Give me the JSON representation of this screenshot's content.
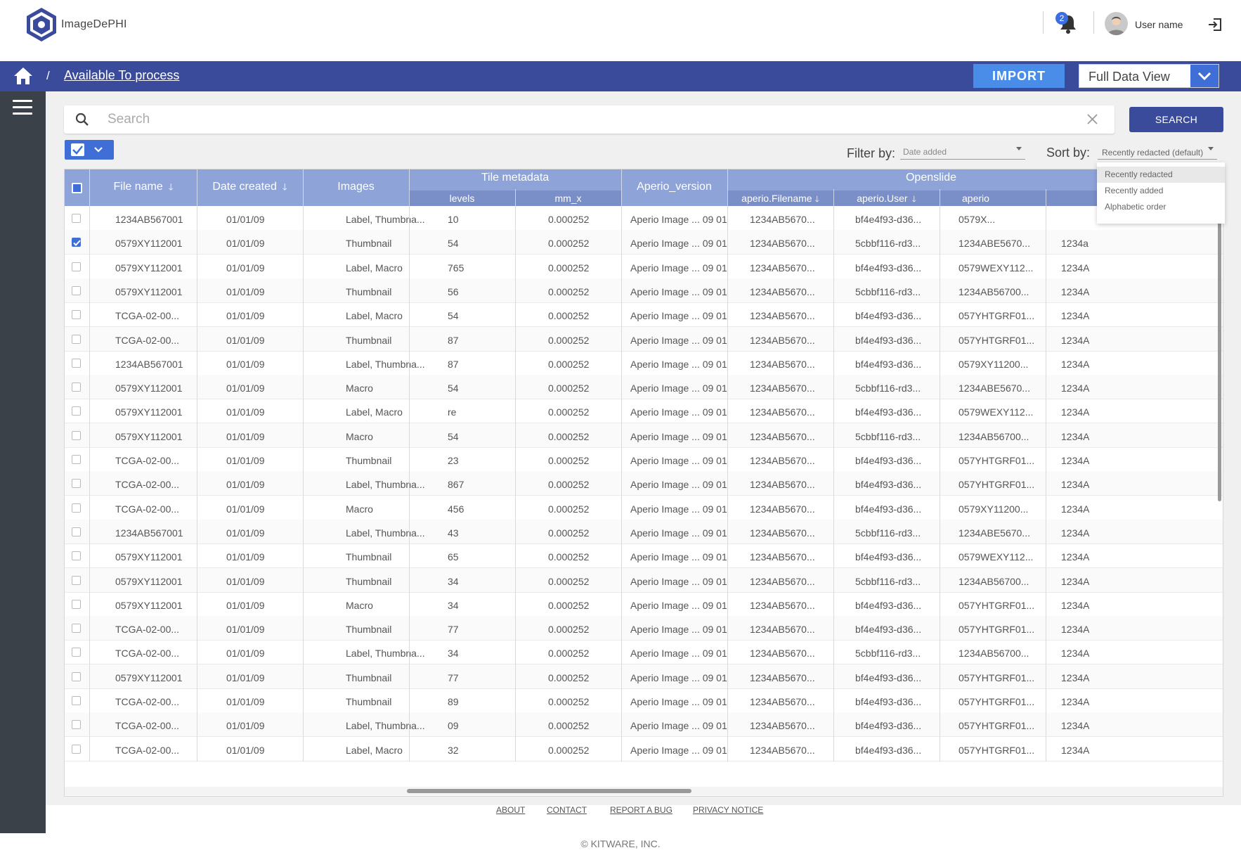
{
  "app": {
    "name": "ImageDePHI",
    "user_name": "User name",
    "notification_count": "2"
  },
  "breadcrumb": {
    "separator": "/",
    "current": "Available To process"
  },
  "toolbar": {
    "import_label": "IMPORT",
    "view_value": "Full Data View"
  },
  "search": {
    "placeholder": "Search",
    "button_label": "SEARCH"
  },
  "filter": {
    "label": "Filter by:",
    "value": "Date added"
  },
  "sort": {
    "label": "Sort by:",
    "value": "Recently redacted (default)",
    "options": [
      "Recently redacted",
      "Recently added",
      "Alphabetic order"
    ]
  },
  "table": {
    "headers": {
      "file_name": "File name",
      "date_created": "Date created",
      "images": "Images",
      "tile_metadata": "Tile metadata",
      "levels": "levels",
      "mm_x": "mm_x",
      "aperio_version": "Aperio_version",
      "openslide": "Openslide",
      "aperio_filename": "aperio.Filename",
      "aperio_user": "aperio.User",
      "aperio_trunc": "aperio"
    },
    "rows": [
      {
        "checked": false,
        "file": "1234AB567001",
        "date": "01/01/09",
        "images": "Label, Thumbna...",
        "levels": "10",
        "mmx": "0.000252",
        "aperio": "Aperio Image ... 09 01",
        "afn": "1234AB5670...",
        "auser": "bf4e4f93-d36...",
        "col9": "0579X...",
        "col10": ""
      },
      {
        "checked": true,
        "file": "0579XY112001",
        "date": "01/01/09",
        "images": "Thumbnail",
        "levels": "54",
        "mmx": "0.000252",
        "aperio": "Aperio Image ... 09 01",
        "afn": "1234AB5670...",
        "auser": "5cbbf116-rd3...",
        "col9": "1234ABE5670...",
        "col10": "1234a"
      },
      {
        "checked": false,
        "file": "0579XY112001",
        "date": "01/01/09",
        "images": "Label, Macro",
        "levels": "765",
        "mmx": "0.000252",
        "aperio": "Aperio Image ... 09 01",
        "afn": "1234AB5670...",
        "auser": "bf4e4f93-d36...",
        "col9": "0579WEXY112...",
        "col10": "1234A"
      },
      {
        "checked": false,
        "file": "0579XY112001",
        "date": "01/01/09",
        "images": "Thumbnail",
        "levels": "56",
        "mmx": "0.000252",
        "aperio": "Aperio Image ... 09 01",
        "afn": "1234AB5670...",
        "auser": "5cbbf116-rd3...",
        "col9": "1234AB56700...",
        "col10": "1234A"
      },
      {
        "checked": false,
        "file": "TCGA-02-00...",
        "date": "01/01/09",
        "images": "Label, Macro",
        "levels": "54",
        "mmx": "0.000252",
        "aperio": "Aperio Image ... 09 01",
        "afn": "1234AB5670...",
        "auser": "bf4e4f93-d36...",
        "col9": "057YHTGRF01...",
        "col10": "1234A"
      },
      {
        "checked": false,
        "file": "TCGA-02-00...",
        "date": "01/01/09",
        "images": "Thumbnail",
        "levels": "87",
        "mmx": "0.000252",
        "aperio": "Aperio Image ... 09 01",
        "afn": "1234AB5670...",
        "auser": "bf4e4f93-d36...",
        "col9": "057YHTGRF01...",
        "col10": "1234A"
      },
      {
        "checked": false,
        "file": "1234AB567001",
        "date": "01/01/09",
        "images": "Label, Thumbna...",
        "levels": "87",
        "mmx": "0.000252",
        "aperio": "Aperio Image ... 09 01",
        "afn": "1234AB5670...",
        "auser": "bf4e4f93-d36...",
        "col9": "0579XY11200...",
        "col10": "1234A"
      },
      {
        "checked": false,
        "file": "0579XY112001",
        "date": "01/01/09",
        "images": "Macro",
        "levels": "54",
        "mmx": "0.000252",
        "aperio": "Aperio Image ... 09 01",
        "afn": "1234AB5670...",
        "auser": "5cbbf116-rd3...",
        "col9": "1234ABE5670...",
        "col10": "1234A"
      },
      {
        "checked": false,
        "file": "0579XY112001",
        "date": "01/01/09",
        "images": "Label, Macro",
        "levels": "re",
        "mmx": "0.000252",
        "aperio": "Aperio Image ... 09 01",
        "afn": "1234AB5670...",
        "auser": "bf4e4f93-d36...",
        "col9": "0579WEXY112...",
        "col10": "1234A"
      },
      {
        "checked": false,
        "file": "0579XY112001",
        "date": "01/01/09",
        "images": "Macro",
        "levels": "54",
        "mmx": "0.000252",
        "aperio": "Aperio Image ... 09 01",
        "afn": "1234AB5670...",
        "auser": "5cbbf116-rd3...",
        "col9": "1234AB56700...",
        "col10": "1234A"
      },
      {
        "checked": false,
        "file": "TCGA-02-00...",
        "date": "01/01/09",
        "images": "Thumbnail",
        "levels": "23",
        "mmx": "0.000252",
        "aperio": "Aperio Image ... 09 01",
        "afn": "1234AB5670...",
        "auser": "bf4e4f93-d36...",
        "col9": "057YHTGRF01...",
        "col10": "1234A"
      },
      {
        "checked": false,
        "file": "TCGA-02-00...",
        "date": "01/01/09",
        "images": "Label, Thumbna...",
        "levels": "867",
        "mmx": "0.000252",
        "aperio": "Aperio Image ... 09 01",
        "afn": "1234AB5670...",
        "auser": "bf4e4f93-d36...",
        "col9": "057YHTGRF01...",
        "col10": "1234A"
      },
      {
        "checked": false,
        "file": "TCGA-02-00...",
        "date": "01/01/09",
        "images": "Macro",
        "levels": "456",
        "mmx": "0.000252",
        "aperio": "Aperio Image ... 09 01",
        "afn": "1234AB5670...",
        "auser": "bf4e4f93-d36...",
        "col9": "0579XY11200...",
        "col10": "1234A"
      },
      {
        "checked": false,
        "file": "1234AB567001",
        "date": "01/01/09",
        "images": "Label, Thumbna...",
        "levels": "43",
        "mmx": "0.000252",
        "aperio": "Aperio Image ... 09 01",
        "afn": "1234AB5670...",
        "auser": "5cbbf116-rd3...",
        "col9": "1234ABE5670...",
        "col10": "1234A"
      },
      {
        "checked": false,
        "file": "0579XY112001",
        "date": "01/01/09",
        "images": "Thumbnail",
        "levels": "65",
        "mmx": "0.000252",
        "aperio": "Aperio Image ... 09 01",
        "afn": "1234AB5670...",
        "auser": "bf4e4f93-d36...",
        "col9": "0579WEXY112...",
        "col10": "1234A"
      },
      {
        "checked": false,
        "file": "0579XY112001",
        "date": "01/01/09",
        "images": "Thumbnail",
        "levels": "34",
        "mmx": "0.000252",
        "aperio": "Aperio Image ... 09 01",
        "afn": "1234AB5670...",
        "auser": "5cbbf116-rd3...",
        "col9": "1234AB56700...",
        "col10": "1234A"
      },
      {
        "checked": false,
        "file": "0579XY112001",
        "date": "01/01/09",
        "images": "Macro",
        "levels": "34",
        "mmx": "0.000252",
        "aperio": "Aperio Image ... 09 01",
        "afn": "1234AB5670...",
        "auser": "bf4e4f93-d36...",
        "col9": "057YHTGRF01...",
        "col10": "1234A"
      },
      {
        "checked": false,
        "file": "TCGA-02-00...",
        "date": "01/01/09",
        "images": "Thumbnail",
        "levels": "77",
        "mmx": "0.000252",
        "aperio": "Aperio Image ... 09 01",
        "afn": "1234AB5670...",
        "auser": "bf4e4f93-d36...",
        "col9": "057YHTGRF01...",
        "col10": "1234A"
      },
      {
        "checked": false,
        "file": "TCGA-02-00...",
        "date": "01/01/09",
        "images": "Label, Thumbna...",
        "levels": "34",
        "mmx": "0.000252",
        "aperio": "Aperio Image ... 09 01",
        "afn": "1234AB5670...",
        "auser": "5cbbf116-rd3...",
        "col9": "1234AB56700...",
        "col10": "1234A"
      },
      {
        "checked": false,
        "file": "0579XY112001",
        "date": "01/01/09",
        "images": "Thumbnail",
        "levels": "77",
        "mmx": "0.000252",
        "aperio": "Aperio Image ... 09 01",
        "afn": "1234AB5670...",
        "auser": "bf4e4f93-d36...",
        "col9": "057YHTGRF01...",
        "col10": "1234A"
      },
      {
        "checked": false,
        "file": "TCGA-02-00...",
        "date": "01/01/09",
        "images": "Thumbnail",
        "levels": "89",
        "mmx": "0.000252",
        "aperio": "Aperio Image ... 09 01",
        "afn": "1234AB5670...",
        "auser": "bf4e4f93-d36...",
        "col9": "057YHTGRF01...",
        "col10": "1234A"
      },
      {
        "checked": false,
        "file": "TCGA-02-00...",
        "date": "01/01/09",
        "images": "Label, Thumbna...",
        "levels": "09",
        "mmx": "0.000252",
        "aperio": "Aperio Image ... 09 01",
        "afn": "1234AB5670...",
        "auser": "bf4e4f93-d36...",
        "col9": "057YHTGRF01...",
        "col10": "1234A"
      },
      {
        "checked": false,
        "file": "TCGA-02-00...",
        "date": "01/01/09",
        "images": "Label, Macro",
        "levels": "32",
        "mmx": "0.000252",
        "aperio": "Aperio Image ... 09 01",
        "afn": "1234AB5670...",
        "auser": "bf4e4f93-d36...",
        "col9": "057YHTGRF01...",
        "col10": "1234A"
      }
    ]
  },
  "footer": {
    "links": [
      "ABOUT",
      "CONTACT",
      "REPORT A BUG",
      "PRIVACY NOTICE"
    ],
    "copyright": "© KITWARE, INC."
  },
  "colors": {
    "primary": "#3b4b9b",
    "accent": "#3f6fd6",
    "header": "#8ea3d8",
    "sidebar": "#3a4149"
  }
}
